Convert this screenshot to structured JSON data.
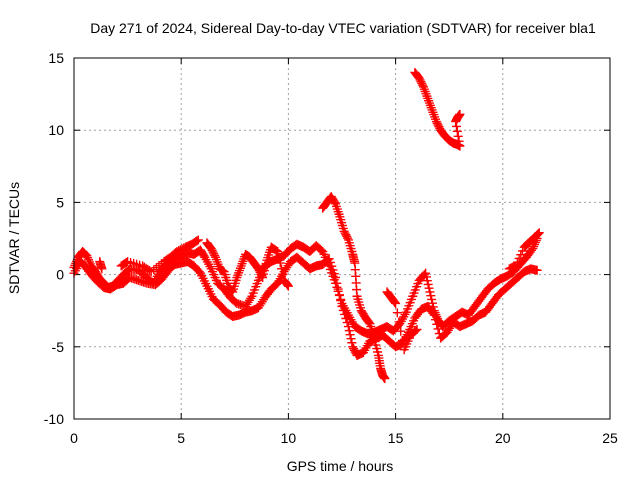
{
  "chart_data": {
    "type": "scatter",
    "title": "Day 271 of 2024, Sidereal Day-to-day VTEC variation (SDTVAR) for receiver bla1",
    "xlabel": "GPS time / hours",
    "ylabel": "SDTVAR / TECUs",
    "xlim": [
      0,
      25
    ],
    "ylim": [
      -10,
      15
    ],
    "xticks": [
      0,
      5,
      10,
      15,
      20,
      25
    ],
    "yticks": [
      -10,
      -5,
      0,
      5,
      10,
      15
    ],
    "xtick_labels": [
      "0",
      "5",
      "10",
      "15",
      "20",
      "25"
    ],
    "ytick_labels": [
      "-10",
      "-5",
      "0",
      "5",
      "10",
      "15"
    ],
    "grid": true,
    "marker": "+",
    "color": "#ff0000",
    "series": [
      {
        "name": "main",
        "points": [
          [
            0.0,
            0.5
          ],
          [
            0.2,
            1.2
          ],
          [
            0.4,
            1.6
          ],
          [
            0.6,
            1.3
          ],
          [
            0.8,
            0.6
          ],
          [
            1.0,
            0.2
          ],
          [
            1.2,
            -0.3
          ],
          [
            1.4,
            -0.6
          ],
          [
            1.6,
            -0.9
          ],
          [
            1.8,
            -0.8
          ],
          [
            2.0,
            -0.5
          ],
          [
            2.3,
            0.0
          ],
          [
            2.6,
            0.4
          ],
          [
            3.0,
            0.3
          ],
          [
            3.4,
            -0.2
          ],
          [
            3.7,
            -0.6
          ],
          [
            4.0,
            0.2
          ],
          [
            4.3,
            0.7
          ],
          [
            4.6,
            1.0
          ],
          [
            5.0,
            1.3
          ],
          [
            5.3,
            1.5
          ],
          [
            5.6,
            1.4
          ],
          [
            5.9,
            1.7
          ],
          [
            6.1,
            1.2
          ],
          [
            6.4,
            0.4
          ],
          [
            6.7,
            -0.6
          ],
          [
            7.0,
            -1.0
          ],
          [
            7.3,
            -1.6
          ],
          [
            7.6,
            -2.0
          ],
          [
            8.0,
            -2.2
          ],
          [
            8.3,
            -1.5
          ],
          [
            8.6,
            -0.4
          ],
          [
            8.9,
            0.6
          ],
          [
            9.2,
            0.9
          ],
          [
            9.5,
            1.1
          ],
          [
            9.8,
            1.3
          ],
          [
            10.1,
            1.8
          ],
          [
            10.4,
            2.1
          ],
          [
            10.7,
            1.9
          ],
          [
            11.0,
            1.6
          ],
          [
            11.3,
            2.0
          ],
          [
            11.6,
            1.6
          ],
          [
            11.9,
            0.6
          ],
          [
            12.2,
            -0.6
          ],
          [
            12.5,
            -2.0
          ],
          [
            12.8,
            -2.8
          ],
          [
            13.1,
            -3.6
          ],
          [
            13.4,
            -3.9
          ],
          [
            13.7,
            -4.1
          ],
          [
            14.0,
            -4.0
          ],
          [
            14.3,
            -3.8
          ],
          [
            14.6,
            -3.6
          ],
          [
            14.9,
            -3.9
          ],
          [
            15.2,
            -3.4
          ],
          [
            15.5,
            -2.6
          ],
          [
            15.8,
            -1.5
          ],
          [
            16.1,
            -0.4
          ],
          [
            16.4,
            0.1
          ],
          [
            16.6,
            -1.2
          ],
          [
            16.8,
            -2.5
          ],
          [
            17.0,
            -3.2
          ],
          [
            17.2,
            -3.6
          ],
          [
            17.5,
            -3.2
          ],
          [
            17.8,
            -2.9
          ],
          [
            18.1,
            -2.6
          ],
          [
            18.4,
            -2.8
          ],
          [
            18.7,
            -2.2
          ],
          [
            19.0,
            -1.6
          ],
          [
            19.3,
            -1.0
          ],
          [
            19.6,
            -0.6
          ],
          [
            19.9,
            -0.3
          ],
          [
            20.2,
            -0.1
          ],
          [
            20.5,
            0.2
          ],
          [
            20.8,
            0.7
          ],
          [
            21.1,
            1.2
          ],
          [
            21.4,
            1.8
          ],
          [
            21.6,
            2.5
          ]
        ]
      },
      {
        "name": "lower branch",
        "points": [
          [
            0.0,
            0.1
          ],
          [
            0.3,
            0.9
          ],
          [
            0.5,
            0.6
          ],
          [
            0.8,
            0.0
          ],
          [
            1.1,
            -0.5
          ],
          [
            1.4,
            -0.9
          ],
          [
            1.7,
            -1.0
          ],
          [
            2.0,
            -0.7
          ],
          [
            2.3,
            -0.6
          ],
          [
            2.6,
            -0.2
          ],
          [
            3.0,
            -0.4
          ],
          [
            3.4,
            -0.6
          ],
          [
            3.8,
            -0.7
          ],
          [
            4.1,
            -0.3
          ],
          [
            4.4,
            0.3
          ],
          [
            4.7,
            0.7
          ],
          [
            5.0,
            0.8
          ],
          [
            5.3,
            0.9
          ],
          [
            5.6,
            0.6
          ],
          [
            5.9,
            0.1
          ],
          [
            6.2,
            -0.8
          ],
          [
            6.5,
            -1.7
          ],
          [
            6.8,
            -2.1
          ],
          [
            7.1,
            -2.6
          ],
          [
            7.4,
            -2.9
          ],
          [
            7.7,
            -2.8
          ],
          [
            8.0,
            -2.6
          ],
          [
            8.3,
            -2.5
          ],
          [
            8.6,
            -2.3
          ],
          [
            8.9,
            -1.6
          ],
          [
            9.2,
            -1.0
          ],
          [
            9.5,
            -0.6
          ],
          [
            9.8,
            0.2
          ],
          [
            10.1,
            0.9
          ],
          [
            10.4,
            1.2
          ],
          [
            10.7,
            0.8
          ],
          [
            11.0,
            0.4
          ],
          [
            11.3,
            0.6
          ],
          [
            11.6,
            0.7
          ],
          [
            11.9,
            1.1
          ],
          [
            12.2,
            -0.2
          ],
          [
            12.5,
            -2.2
          ],
          [
            12.8,
            -3.6
          ],
          [
            13.0,
            -5.0
          ],
          [
            13.2,
            -5.6
          ],
          [
            13.5,
            -5.4
          ],
          [
            13.8,
            -4.6
          ],
          [
            14.1,
            -4.4
          ],
          [
            14.4,
            -4.2
          ],
          [
            14.7,
            -4.6
          ],
          [
            15.0,
            -5.0
          ],
          [
            15.3,
            -4.8
          ],
          [
            15.6,
            -4.0
          ],
          [
            15.9,
            -3.0
          ],
          [
            16.2,
            -2.4
          ],
          [
            16.5,
            -2.2
          ],
          [
            16.8,
            -2.8
          ],
          [
            17.1,
            -4.4
          ],
          [
            17.4,
            -4.0
          ],
          [
            17.7,
            -3.3
          ],
          [
            18.0,
            -3.6
          ],
          [
            18.3,
            -3.4
          ],
          [
            18.6,
            -3.2
          ],
          [
            18.9,
            -2.8
          ],
          [
            19.2,
            -2.6
          ],
          [
            19.5,
            -2.0
          ],
          [
            19.8,
            -1.4
          ],
          [
            20.1,
            -1.0
          ],
          [
            20.4,
            -0.6
          ],
          [
            20.7,
            -0.2
          ],
          [
            21.0,
            0.2
          ],
          [
            21.3,
            0.4
          ],
          [
            21.6,
            0.3
          ]
        ]
      },
      {
        "name": "spikes",
        "points": [
          [
            11.6,
            4.6
          ],
          [
            11.8,
            5.0
          ],
          [
            12.0,
            5.4
          ],
          [
            12.2,
            4.9
          ],
          [
            12.4,
            4.0
          ],
          [
            12.6,
            3.0
          ],
          [
            12.8,
            2.4
          ],
          [
            13.0,
            1.4
          ],
          [
            13.1,
            0.8
          ],
          [
            13.2,
            -1.5
          ],
          [
            13.4,
            -2.5
          ],
          [
            13.6,
            -3.0
          ],
          [
            13.8,
            -3.4
          ],
          [
            14.0,
            -4.4
          ],
          [
            14.2,
            -5.6
          ],
          [
            14.3,
            -6.5
          ],
          [
            14.4,
            -7.0
          ],
          [
            14.5,
            -7.2
          ],
          [
            6.2,
            2.2
          ],
          [
            6.4,
            1.8
          ],
          [
            6.6,
            1.2
          ],
          [
            6.8,
            0.4
          ],
          [
            7.0,
            0.2
          ],
          [
            7.2,
            -0.8
          ],
          [
            7.4,
            -1.2
          ],
          [
            7.6,
            -0.2
          ],
          [
            7.8,
            0.6
          ],
          [
            8.0,
            1.4
          ],
          [
            8.2,
            1.2
          ],
          [
            8.4,
            0.8
          ],
          [
            8.6,
            0.4
          ],
          [
            8.8,
            -0.2
          ],
          [
            9.0,
            1.0
          ],
          [
            9.2,
            1.9
          ],
          [
            9.5,
            1.6
          ],
          [
            9.8,
            -0.4
          ],
          [
            10.0,
            -0.8
          ],
          [
            1.2,
            0.9
          ],
          [
            1.3,
            0.4
          ],
          [
            2.2,
            0.6
          ],
          [
            2.5,
            0.9
          ],
          [
            3.2,
            0.6
          ],
          [
            3.6,
            0.2
          ],
          [
            4.2,
            0.9
          ],
          [
            4.5,
            1.2
          ],
          [
            4.8,
            1.6
          ],
          [
            5.2,
            1.9
          ],
          [
            5.5,
            2.1
          ],
          [
            5.8,
            2.4
          ],
          [
            14.6,
            -1.2
          ],
          [
            14.8,
            -1.6
          ],
          [
            15.0,
            -2.0
          ],
          [
            15.4,
            -5.2
          ],
          [
            15.7,
            -4.2
          ],
          [
            16.0,
            -3.8
          ],
          [
            20.3,
            0.4
          ],
          [
            20.6,
            0.6
          ],
          [
            21.0,
            1.9
          ],
          [
            21.2,
            2.2
          ],
          [
            21.5,
            2.6
          ],
          [
            21.7,
            2.9
          ]
        ]
      },
      {
        "name": "upper segment",
        "points": [
          [
            15.9,
            14.0
          ],
          [
            16.1,
            13.6
          ],
          [
            16.3,
            13.0
          ],
          [
            16.5,
            12.2
          ],
          [
            16.7,
            11.4
          ],
          [
            16.9,
            10.6
          ],
          [
            17.1,
            10.0
          ],
          [
            17.3,
            9.6
          ],
          [
            17.5,
            9.3
          ],
          [
            17.7,
            9.1
          ],
          [
            17.9,
            9.0
          ],
          [
            18.0,
            8.9
          ],
          [
            17.8,
            10.6
          ],
          [
            17.9,
            10.9
          ],
          [
            18.0,
            11.1
          ]
        ]
      }
    ]
  }
}
